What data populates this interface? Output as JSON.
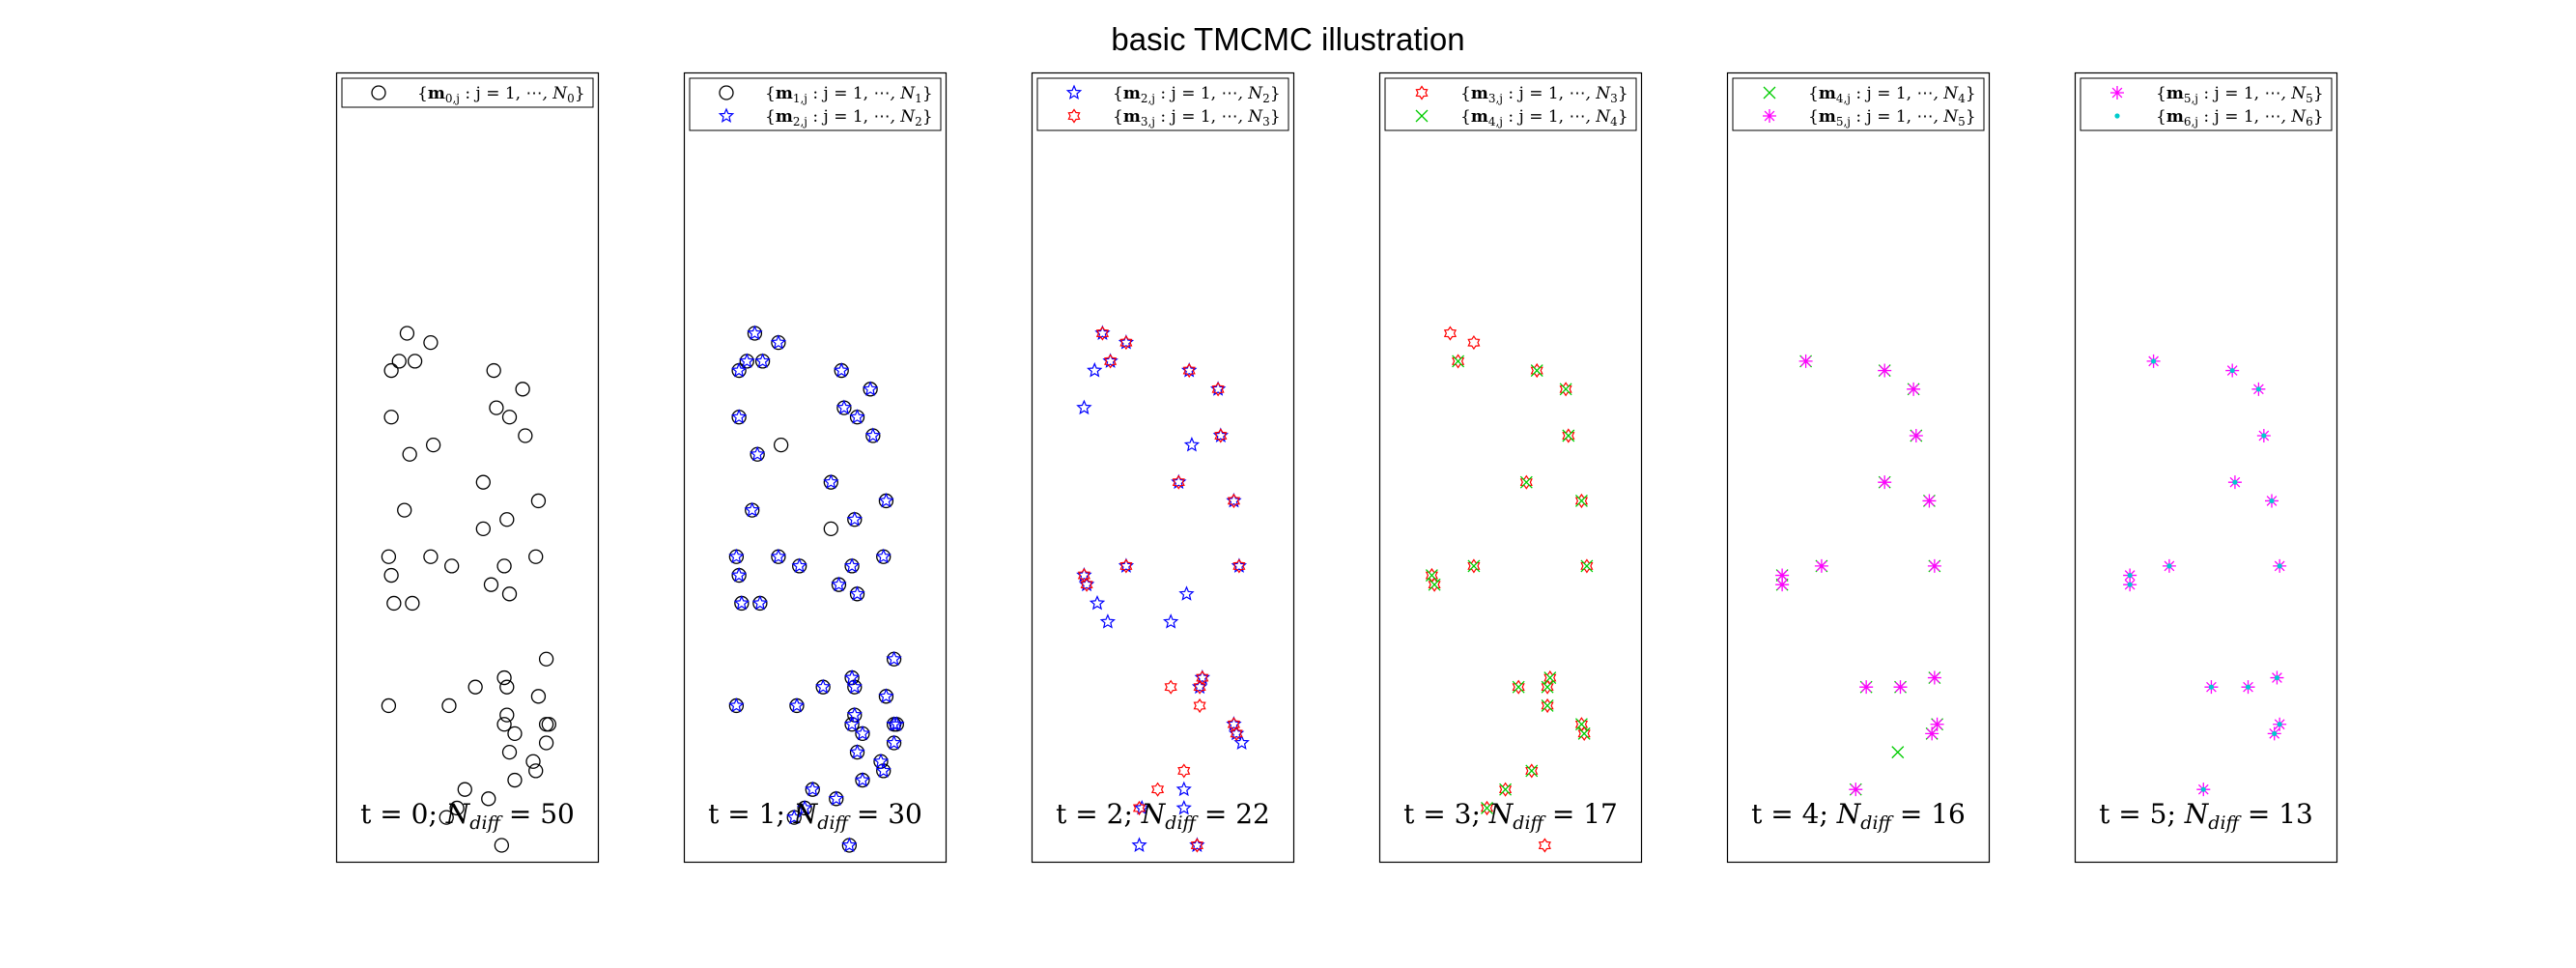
{
  "chart_data": {
    "title": "basic TMCMC illustration",
    "type": "scatter",
    "axes_visible": false,
    "grid": false,
    "panels": [
      {
        "label": "t = 0; N_diff = 50",
        "t": 0,
        "N_diff": 50,
        "legend": [
          {
            "label": "{m_0,j : j = 1, ..., N_0}",
            "marker": "circle",
            "color": "#000000"
          }
        ],
        "series": [
          {
            "name": "{m_0,j : j = 1, ..., N_0}",
            "marker": "circle",
            "color": "#000000",
            "x": [
              0.27,
              0.36,
              0.24,
              0.3,
              0.21,
              0.6,
              0.71,
              0.21,
              0.61,
              0.66,
              0.28,
              0.37,
              0.72,
              0.56,
              0.77,
              0.26,
              0.65,
              0.2,
              0.56,
              0.36,
              0.76,
              0.64,
              0.44,
              0.21,
              0.59,
              0.29,
              0.66,
              0.22,
              0.8,
              0.53,
              0.65,
              0.64,
              0.2,
              0.43,
              0.77,
              0.8,
              0.64,
              0.65,
              0.8,
              0.68,
              0.81,
              0.66,
              0.75,
              0.76,
              0.49,
              0.68,
              0.58,
              0.42,
              0.46,
              0.63
            ],
            "y": [
              0.92,
              0.91,
              0.89,
              0.89,
              0.88,
              0.88,
              0.86,
              0.83,
              0.84,
              0.83,
              0.79,
              0.8,
              0.81,
              0.76,
              0.74,
              0.73,
              0.72,
              0.68,
              0.71,
              0.68,
              0.68,
              0.67,
              0.67,
              0.66,
              0.65,
              0.63,
              0.64,
              0.63,
              0.57,
              0.54,
              0.54,
              0.55,
              0.52,
              0.52,
              0.53,
              0.48,
              0.5,
              0.51,
              0.5,
              0.49,
              0.5,
              0.47,
              0.46,
              0.45,
              0.43,
              0.44,
              0.42,
              0.4,
              0.41,
              0.37
            ]
          }
        ]
      },
      {
        "label": "t = 1; N_diff = 30",
        "t": 1,
        "N_diff": 30,
        "legend": [
          {
            "label": "{m_1,j : j = 1, ..., N_1}",
            "marker": "circle",
            "color": "#000000"
          },
          {
            "label": "{m_2,j : j = 1, ..., N_2}",
            "marker": "star",
            "color": "#0000ff"
          }
        ],
        "series": [
          {
            "name": "{m_1,j : j = 1, ..., N_1}",
            "marker": "circle",
            "color": "#000000",
            "x": [
              0.27,
              0.36,
              0.24,
              0.3,
              0.21,
              0.6,
              0.71,
              0.21,
              0.61,
              0.66,
              0.28,
              0.37,
              0.72,
              0.56,
              0.77,
              0.26,
              0.65,
              0.2,
              0.56,
              0.36,
              0.76,
              0.64,
              0.44,
              0.21,
              0.59,
              0.29,
              0.66,
              0.22,
              0.8,
              0.53,
              0.65,
              0.64,
              0.2,
              0.43,
              0.77,
              0.8,
              0.64,
              0.65,
              0.8,
              0.68,
              0.81,
              0.66,
              0.75,
              0.76,
              0.49,
              0.68,
              0.58,
              0.42,
              0.46,
              0.63
            ],
            "y": [
              0.92,
              0.91,
              0.89,
              0.89,
              0.88,
              0.88,
              0.86,
              0.83,
              0.84,
              0.83,
              0.79,
              0.8,
              0.81,
              0.76,
              0.74,
              0.73,
              0.72,
              0.68,
              0.71,
              0.68,
              0.68,
              0.67,
              0.67,
              0.66,
              0.65,
              0.63,
              0.64,
              0.63,
              0.57,
              0.54,
              0.54,
              0.55,
              0.52,
              0.52,
              0.53,
              0.48,
              0.5,
              0.51,
              0.5,
              0.49,
              0.5,
              0.47,
              0.46,
              0.45,
              0.43,
              0.44,
              0.42,
              0.4,
              0.41,
              0.37
            ]
          },
          {
            "name": "{m_2,j : j = 1, ..., N_2}",
            "marker": "star",
            "color": "#0000ff",
            "x": [
              0.27,
              0.36,
              0.24,
              0.3,
              0.21,
              0.6,
              0.71,
              0.21,
              0.61,
              0.66,
              0.28,
              0.72,
              0.56,
              0.77,
              0.26,
              0.65,
              0.2,
              0.36,
              0.76,
              0.64,
              0.44,
              0.21,
              0.59,
              0.29,
              0.66,
              0.22,
              0.8,
              0.53,
              0.65,
              0.64,
              0.2,
              0.43,
              0.77,
              0.8,
              0.64,
              0.65,
              0.8,
              0.68,
              0.81,
              0.66,
              0.75,
              0.76,
              0.49,
              0.68,
              0.58,
              0.42,
              0.46,
              0.63
            ],
            "y": [
              0.92,
              0.91,
              0.89,
              0.89,
              0.88,
              0.88,
              0.86,
              0.83,
              0.84,
              0.83,
              0.79,
              0.81,
              0.76,
              0.74,
              0.73,
              0.72,
              0.68,
              0.68,
              0.68,
              0.67,
              0.67,
              0.66,
              0.65,
              0.63,
              0.64,
              0.63,
              0.57,
              0.54,
              0.54,
              0.55,
              0.52,
              0.52,
              0.53,
              0.48,
              0.5,
              0.51,
              0.5,
              0.49,
              0.5,
              0.47,
              0.46,
              0.45,
              0.43,
              0.44,
              0.42,
              0.4,
              0.41,
              0.37
            ]
          }
        ]
      },
      {
        "label": "t = 2; N_diff = 22",
        "t": 2,
        "N_diff": 22,
        "legend": [
          {
            "label": "{m_2,j : j = 1, ..., N_2}",
            "marker": "star",
            "color": "#0000ff"
          },
          {
            "label": "{m_3,j : j = 1, ..., N_3}",
            "marker": "hexagram",
            "color": "#ff0000"
          }
        ],
        "series": [
          {
            "name": "{m_2,j : j = 1, ..., N_2}",
            "marker": "star",
            "color": "#0000ff",
            "x": [
              0.27,
              0.36,
              0.3,
              0.24,
              0.6,
              0.71,
              0.2,
              0.61,
              0.72,
              0.56,
              0.77,
              0.36,
              0.2,
              0.21,
              0.79,
              0.25,
              0.59,
              0.29,
              0.53,
              0.64,
              0.65,
              0.77,
              0.78,
              0.8,
              0.58,
              0.42,
              0.58,
              0.41,
              0.63
            ],
            "y": [
              0.92,
              0.91,
              0.89,
              0.88,
              0.88,
              0.86,
              0.84,
              0.8,
              0.81,
              0.76,
              0.74,
              0.67,
              0.66,
              0.65,
              0.67,
              0.63,
              0.64,
              0.61,
              0.61,
              0.54,
              0.55,
              0.5,
              0.49,
              0.48,
              0.43,
              0.41,
              0.41,
              0.37,
              0.37
            ]
          },
          {
            "name": "{m_3,j : j = 1, ..., N_3}",
            "marker": "hexagram",
            "color": "#ff0000",
            "x": [
              0.27,
              0.36,
              0.3,
              0.6,
              0.71,
              0.72,
              0.56,
              0.77,
              0.36,
              0.2,
              0.21,
              0.79,
              0.53,
              0.64,
              0.65,
              0.77,
              0.78,
              0.64,
              0.48,
              0.58,
              0.41,
              0.63
            ],
            "y": [
              0.92,
              0.91,
              0.89,
              0.88,
              0.86,
              0.81,
              0.76,
              0.74,
              0.67,
              0.66,
              0.65,
              0.67,
              0.54,
              0.54,
              0.55,
              0.5,
              0.49,
              0.52,
              0.43,
              0.45,
              0.41,
              0.37
            ]
          }
        ]
      },
      {
        "label": "t = 3; N_diff = 17",
        "t": 3,
        "N_diff": 17,
        "legend": [
          {
            "label": "{m_3,j : j = 1, ..., N_3}",
            "marker": "hexagram",
            "color": "#ff0000"
          },
          {
            "label": "{m_4,j : j = 1, ..., N_4}",
            "marker": "x",
            "color": "#00cc00"
          }
        ],
        "series": [
          {
            "name": "{m_3,j : j = 1, ..., N_3}",
            "marker": "hexagram",
            "color": "#ff0000",
            "x": [
              0.27,
              0.36,
              0.3,
              0.6,
              0.71,
              0.72,
              0.56,
              0.77,
              0.36,
              0.2,
              0.21,
              0.79,
              0.53,
              0.64,
              0.65,
              0.77,
              0.78,
              0.64,
              0.48,
              0.58,
              0.41,
              0.63
            ],
            "y": [
              0.92,
              0.91,
              0.89,
              0.88,
              0.86,
              0.81,
              0.76,
              0.74,
              0.67,
              0.66,
              0.65,
              0.67,
              0.54,
              0.54,
              0.55,
              0.5,
              0.49,
              0.52,
              0.43,
              0.45,
              0.41,
              0.37
            ]
          },
          {
            "name": "{m_4,j : j = 1, ..., N_4}",
            "marker": "x",
            "color": "#00cc00",
            "x": [
              0.3,
              0.6,
              0.71,
              0.72,
              0.56,
              0.77,
              0.36,
              0.2,
              0.21,
              0.79,
              0.53,
              0.64,
              0.65,
              0.77,
              0.78,
              0.64,
              0.48,
              0.58,
              0.41
            ],
            "y": [
              0.89,
              0.88,
              0.86,
              0.81,
              0.76,
              0.74,
              0.67,
              0.66,
              0.65,
              0.67,
              0.54,
              0.54,
              0.55,
              0.5,
              0.49,
              0.52,
              0.43,
              0.45,
              0.41
            ]
          }
        ]
      },
      {
        "label": "t = 4; N_diff = 16",
        "t": 4,
        "N_diff": 16,
        "legend": [
          {
            "label": "{m_4,j : j = 1, ..., N_4}",
            "marker": "x",
            "color": "#00cc00"
          },
          {
            "label": "{m_5,j : j = 1, ..., N_5}",
            "marker": "asterisk",
            "color": "#ff00ff"
          }
        ],
        "series": [
          {
            "name": "{m_4,j : j = 1, ..., N_4}",
            "marker": "x",
            "color": "#00cc00",
            "x": [
              0.3,
              0.6,
              0.71,
              0.72,
              0.6,
              0.77,
              0.36,
              0.21,
              0.21,
              0.79,
              0.53,
              0.66,
              0.79,
              0.8,
              0.78,
              0.49,
              0.65
            ],
            "y": [
              0.89,
              0.88,
              0.86,
              0.81,
              0.76,
              0.74,
              0.67,
              0.66,
              0.65,
              0.67,
              0.54,
              0.54,
              0.55,
              0.5,
              0.49,
              0.43,
              0.47
            ]
          },
          {
            "name": "{m_5,j : j = 1, ..., N_5}",
            "marker": "asterisk",
            "color": "#ff00ff",
            "x": [
              0.3,
              0.6,
              0.71,
              0.72,
              0.6,
              0.77,
              0.36,
              0.21,
              0.21,
              0.79,
              0.53,
              0.66,
              0.79,
              0.8,
              0.78,
              0.49
            ],
            "y": [
              0.89,
              0.88,
              0.86,
              0.81,
              0.76,
              0.74,
              0.67,
              0.66,
              0.65,
              0.67,
              0.54,
              0.54,
              0.55,
              0.5,
              0.49,
              0.43
            ]
          }
        ]
      },
      {
        "label": "t = 5; N_diff = 13",
        "t": 5,
        "N_diff": 13,
        "legend": [
          {
            "label": "{m_5,j : j = 1, ..., N_5}",
            "marker": "asterisk",
            "color": "#ff00ff"
          },
          {
            "label": "{m_6,j : j = 1, ..., N_6}",
            "marker": "dot",
            "color": "#00cccc"
          }
        ],
        "series": [
          {
            "name": "{m_5,j : j = 1, ..., N_5}",
            "marker": "asterisk",
            "color": "#ff00ff",
            "x": [
              0.3,
              0.6,
              0.7,
              0.72,
              0.61,
              0.75,
              0.36,
              0.21,
              0.21,
              0.78,
              0.52,
              0.66,
              0.77,
              0.78,
              0.76,
              0.49
            ],
            "y": [
              0.89,
              0.88,
              0.86,
              0.81,
              0.76,
              0.74,
              0.67,
              0.66,
              0.65,
              0.67,
              0.54,
              0.54,
              0.55,
              0.5,
              0.49,
              0.43
            ]
          },
          {
            "name": "{m_6,j : j = 1, ..., N_6}",
            "marker": "dot",
            "color": "#00cccc",
            "x": [
              0.3,
              0.6,
              0.7,
              0.72,
              0.61,
              0.75,
              0.36,
              0.21,
              0.21,
              0.78,
              0.52,
              0.66,
              0.77,
              0.78,
              0.76,
              0.49
            ],
            "y": [
              0.89,
              0.88,
              0.86,
              0.81,
              0.76,
              0.74,
              0.67,
              0.66,
              0.65,
              0.67,
              0.54,
              0.54,
              0.55,
              0.5,
              0.49,
              0.43
            ]
          }
        ]
      }
    ]
  }
}
